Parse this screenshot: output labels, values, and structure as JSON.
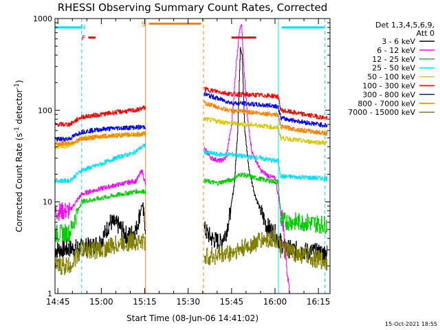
{
  "chart_data": {
    "type": "line",
    "title": "RHESSI Observing Summary Count Rates, Corrected",
    "xlabel": "Start Time (08-Jun-06 14:41:02)",
    "ylabel": "Corrected Count Rate (s",
    "ylabel_sup1": "-1",
    "ylabel_mid": " detector",
    "ylabel_sup2": "-1",
    "ylabel_end": ")",
    "yscale": "log",
    "ylim": [
      1,
      1000
    ],
    "xlim_min": [
      884,
      979
    ],
    "x_ticks": [
      {
        "min": 885,
        "label": "14:45"
      },
      {
        "min": 900,
        "label": "15:00"
      },
      {
        "min": 915,
        "label": "15:15"
      },
      {
        "min": 930,
        "label": "15:30"
      },
      {
        "min": 945,
        "label": "15:45"
      },
      {
        "min": 960,
        "label": "16:00"
      },
      {
        "min": 975,
        "label": "16:15"
      }
    ],
    "y_ticks": [
      {
        "v": 1,
        "label": "1"
      },
      {
        "v": 10,
        "label": "10"
      },
      {
        "v": 100,
        "label": "100"
      },
      {
        "v": 1000,
        "label": "1000"
      }
    ],
    "legend_header": [
      "Det 1,3,4,5,6,9,",
      "Att 0"
    ],
    "legend_placement": "right",
    "series": [
      {
        "name": "3 - 6 keV",
        "color": "#000000",
        "segments": [
          [
            [
              884,
              3.0
            ],
            [
              889,
              3.1
            ],
            [
              894,
              3.2
            ],
            [
              897,
              3.3
            ],
            [
              900,
              3.8
            ],
            [
              903,
              6.0
            ],
            [
              906,
              5.5
            ],
            [
              909,
              4.2
            ],
            [
              912,
              5.0
            ],
            [
              914,
              9.5
            ],
            [
              915.3,
              5.0
            ]
          ],
          [
            [
              935.5,
              5.0
            ],
            [
              938,
              4.0
            ],
            [
              941,
              3.6
            ],
            [
              943,
              4.6
            ],
            [
              944.5,
              7.5
            ],
            [
              946,
              17
            ],
            [
              947,
              55
            ],
            [
              948,
              480
            ],
            [
              948.6,
              420
            ],
            [
              949.5,
              60
            ],
            [
              951,
              22
            ],
            [
              953,
              12
            ],
            [
              955,
              8
            ],
            [
              957,
              5.5
            ],
            [
              960,
              4.5
            ],
            [
              963,
              3.2
            ],
            [
              966,
              3.0
            ],
            [
              970,
              2.9
            ],
            [
              975,
              2.8
            ],
            [
              978,
              2.8
            ]
          ]
        ]
      },
      {
        "name": "6 - 12 keV",
        "color": "#ff00ff",
        "segments": [
          [
            [
              884,
              7.8
            ],
            [
              889,
              8.0
            ],
            [
              893,
              12
            ],
            [
              896,
              13
            ],
            [
              900,
              14
            ],
            [
              904,
              15
            ],
            [
              908,
              16
            ],
            [
              912,
              17
            ],
            [
              914,
              22
            ],
            [
              915.3,
              15
            ]
          ],
          [
            [
              935.5,
              38
            ],
            [
              938,
              30
            ],
            [
              941,
              28
            ],
            [
              943,
              30
            ],
            [
              945,
              70
            ],
            [
              946.5,
              300
            ],
            [
              947.7,
              780
            ],
            [
              948.4,
              900
            ],
            [
              949.3,
              250
            ],
            [
              950.5,
              80
            ],
            [
              952,
              35
            ],
            [
              955,
              22
            ],
            [
              958,
              19
            ],
            [
              960,
              18
            ],
            [
              962,
              8
            ],
            [
              963,
              5
            ],
            [
              964,
              2
            ],
            [
              965,
              1.0
            ]
          ]
        ]
      },
      {
        "name": "12 - 25 keV",
        "color": "#00cc00",
        "segments": [
          [
            [
              884,
              4.5
            ],
            [
              889,
              4.6
            ],
            [
              893,
              10
            ],
            [
              900,
              11
            ],
            [
              906,
              12
            ],
            [
              912,
              13
            ],
            [
              915.3,
              13
            ]
          ],
          [
            [
              935.5,
              17
            ],
            [
              940,
              16
            ],
            [
              945,
              17.5
            ],
            [
              948,
              20
            ],
            [
              951,
              19
            ],
            [
              954,
              18
            ],
            [
              958,
              17
            ],
            [
              961,
              16.5
            ],
            [
              962,
              6.2
            ],
            [
              970,
              6.0
            ],
            [
              978,
              5.6
            ]
          ]
        ]
      },
      {
        "name": "25 - 50 keV",
        "color": "#00e0ff",
        "segments": [
          [
            [
              884,
              17
            ],
            [
              889,
              17
            ],
            [
              893,
              22
            ],
            [
              900,
              26
            ],
            [
              906,
              31
            ],
            [
              911,
              34
            ],
            [
              913,
              38
            ],
            [
              915.3,
              42
            ]
          ],
          [
            [
              935.5,
              35
            ],
            [
              940,
              33
            ],
            [
              945,
              33
            ],
            [
              950,
              31
            ],
            [
              955,
              30
            ],
            [
              960,
              28
            ],
            [
              961,
              28
            ],
            [
              962,
              19
            ],
            [
              970,
              18.5
            ],
            [
              978,
              18
            ]
          ]
        ]
      },
      {
        "name": "50 - 100 keV",
        "color": "#d4c800",
        "segments": [
          [
            [
              884,
              40
            ],
            [
              889,
              41
            ],
            [
              893,
              50
            ],
            [
              900,
              52
            ],
            [
              906,
              54
            ],
            [
              912,
              55
            ],
            [
              915.3,
              56
            ]
          ],
          [
            [
              935.5,
              80
            ],
            [
              940,
              76
            ],
            [
              945,
              72
            ],
            [
              950,
              70
            ],
            [
              955,
              68
            ],
            [
              961,
              64
            ],
            [
              962,
              50
            ],
            [
              970,
              46
            ],
            [
              978,
              44
            ]
          ]
        ]
      },
      {
        "name": "100 - 300 keV",
        "color": "#ff0000",
        "segments": [
          [
            [
              884,
              70
            ],
            [
              889,
              70
            ],
            [
              893,
              84
            ],
            [
              900,
              90
            ],
            [
              906,
              96
            ],
            [
              912,
              100
            ],
            [
              915.3,
              108
            ]
          ],
          [
            [
              935.5,
              170
            ],
            [
              940,
              160
            ],
            [
              945,
              150
            ],
            [
              950,
              148
            ],
            [
              955,
              146
            ],
            [
              960,
              143
            ],
            [
              961,
              140
            ],
            [
              962,
              100
            ],
            [
              970,
              90
            ],
            [
              978,
              82
            ]
          ]
        ]
      },
      {
        "name": "300 - 800 keV",
        "color": "#0000ff",
        "segments": [
          [
            [
              884,
              48
            ],
            [
              889,
              49
            ],
            [
              893,
              58
            ],
            [
              900,
              62
            ],
            [
              906,
              64
            ],
            [
              912,
              65
            ],
            [
              915.3,
              66
            ]
          ],
          [
            [
              935.5,
              150
            ],
            [
              940,
              135
            ],
            [
              945,
              120
            ],
            [
              950,
              118
            ],
            [
              955,
              114
            ],
            [
              960,
              112
            ],
            [
              961,
              110
            ],
            [
              962,
              82
            ],
            [
              970,
              74
            ],
            [
              978,
              68
            ]
          ]
        ]
      },
      {
        "name": "800 - 7000 keV",
        "color": "#ff8000",
        "segments": [
          [
            [
              884,
              43
            ],
            [
              889,
              44
            ],
            [
              893,
              48
            ],
            [
              900,
              52
            ],
            [
              906,
              53
            ],
            [
              912,
              54
            ],
            [
              915.3,
              55
            ]
          ],
          [
            [
              935.5,
              120
            ],
            [
              940,
              108
            ],
            [
              945,
              98
            ],
            [
              950,
              96
            ],
            [
              955,
              93
            ],
            [
              960,
              90
            ],
            [
              961,
              88
            ],
            [
              962,
              66
            ],
            [
              970,
              60
            ],
            [
              978,
              56
            ]
          ]
        ]
      },
      {
        "name": "7000 - 15000 keV",
        "color": "#808000",
        "segments": [
          [
            [
              884,
              2.0
            ],
            [
              889,
              2.0
            ],
            [
              893,
              3.0
            ],
            [
              900,
              3.0
            ],
            [
              906,
              3.5
            ],
            [
              912,
              3.7
            ],
            [
              915.3,
              3.6
            ]
          ],
          [
            [
              935.5,
              2.5
            ],
            [
              940,
              2.6
            ],
            [
              945,
              2.8
            ],
            [
              950,
              3.2
            ],
            [
              955,
              3.8
            ],
            [
              960,
              4.0
            ],
            [
              961,
              3.6
            ],
            [
              962,
              3.0
            ],
            [
              970,
              2.6
            ],
            [
              978,
              2.2
            ]
          ]
        ]
      }
    ],
    "annotations": {
      "vlines": [
        {
          "min": 884,
          "color": "#00e0ff",
          "style": "solid"
        },
        {
          "min": 893.2,
          "color": "#00e0ff",
          "style": "dashed"
        },
        {
          "min": 915.3,
          "color": "#ff8000",
          "style": "solid"
        },
        {
          "min": 935.3,
          "color": "#ff8000",
          "style": "dashed"
        },
        {
          "min": 961.2,
          "color": "#00e0ff",
          "style": "solid"
        },
        {
          "min": 977.2,
          "color": "#00e0ff",
          "style": "dashed"
        }
      ],
      "bars": [
        {
          "label": "N",
          "color": "#00e0ff",
          "x1": 884,
          "x2": 893.2,
          "y": 800,
          "label_min": 892.8,
          "label_y": 820
        },
        {
          "label": "F",
          "color": "#ff0000",
          "x1": 895.5,
          "x2": 898,
          "y": 620,
          "label_min": 893.2,
          "label_y": 620
        },
        {
          "label": "S",
          "color": "#ff8000",
          "x1": 916.5,
          "x2": 934.5,
          "y": 880,
          "label_min": 913.8,
          "label_y": 880
        },
        {
          "label": "N",
          "color": "#00e0ff",
          "x1": 962.3,
          "x2": 977,
          "y": 800,
          "label_min": null,
          "label_y": null
        },
        {
          "label": "",
          "color": "#ff0000",
          "x1": 945,
          "x2": 953.5,
          "y": 620,
          "label_min": null,
          "label_y": null
        }
      ]
    }
  },
  "footer_date": "15-Oct-2021 18:55"
}
